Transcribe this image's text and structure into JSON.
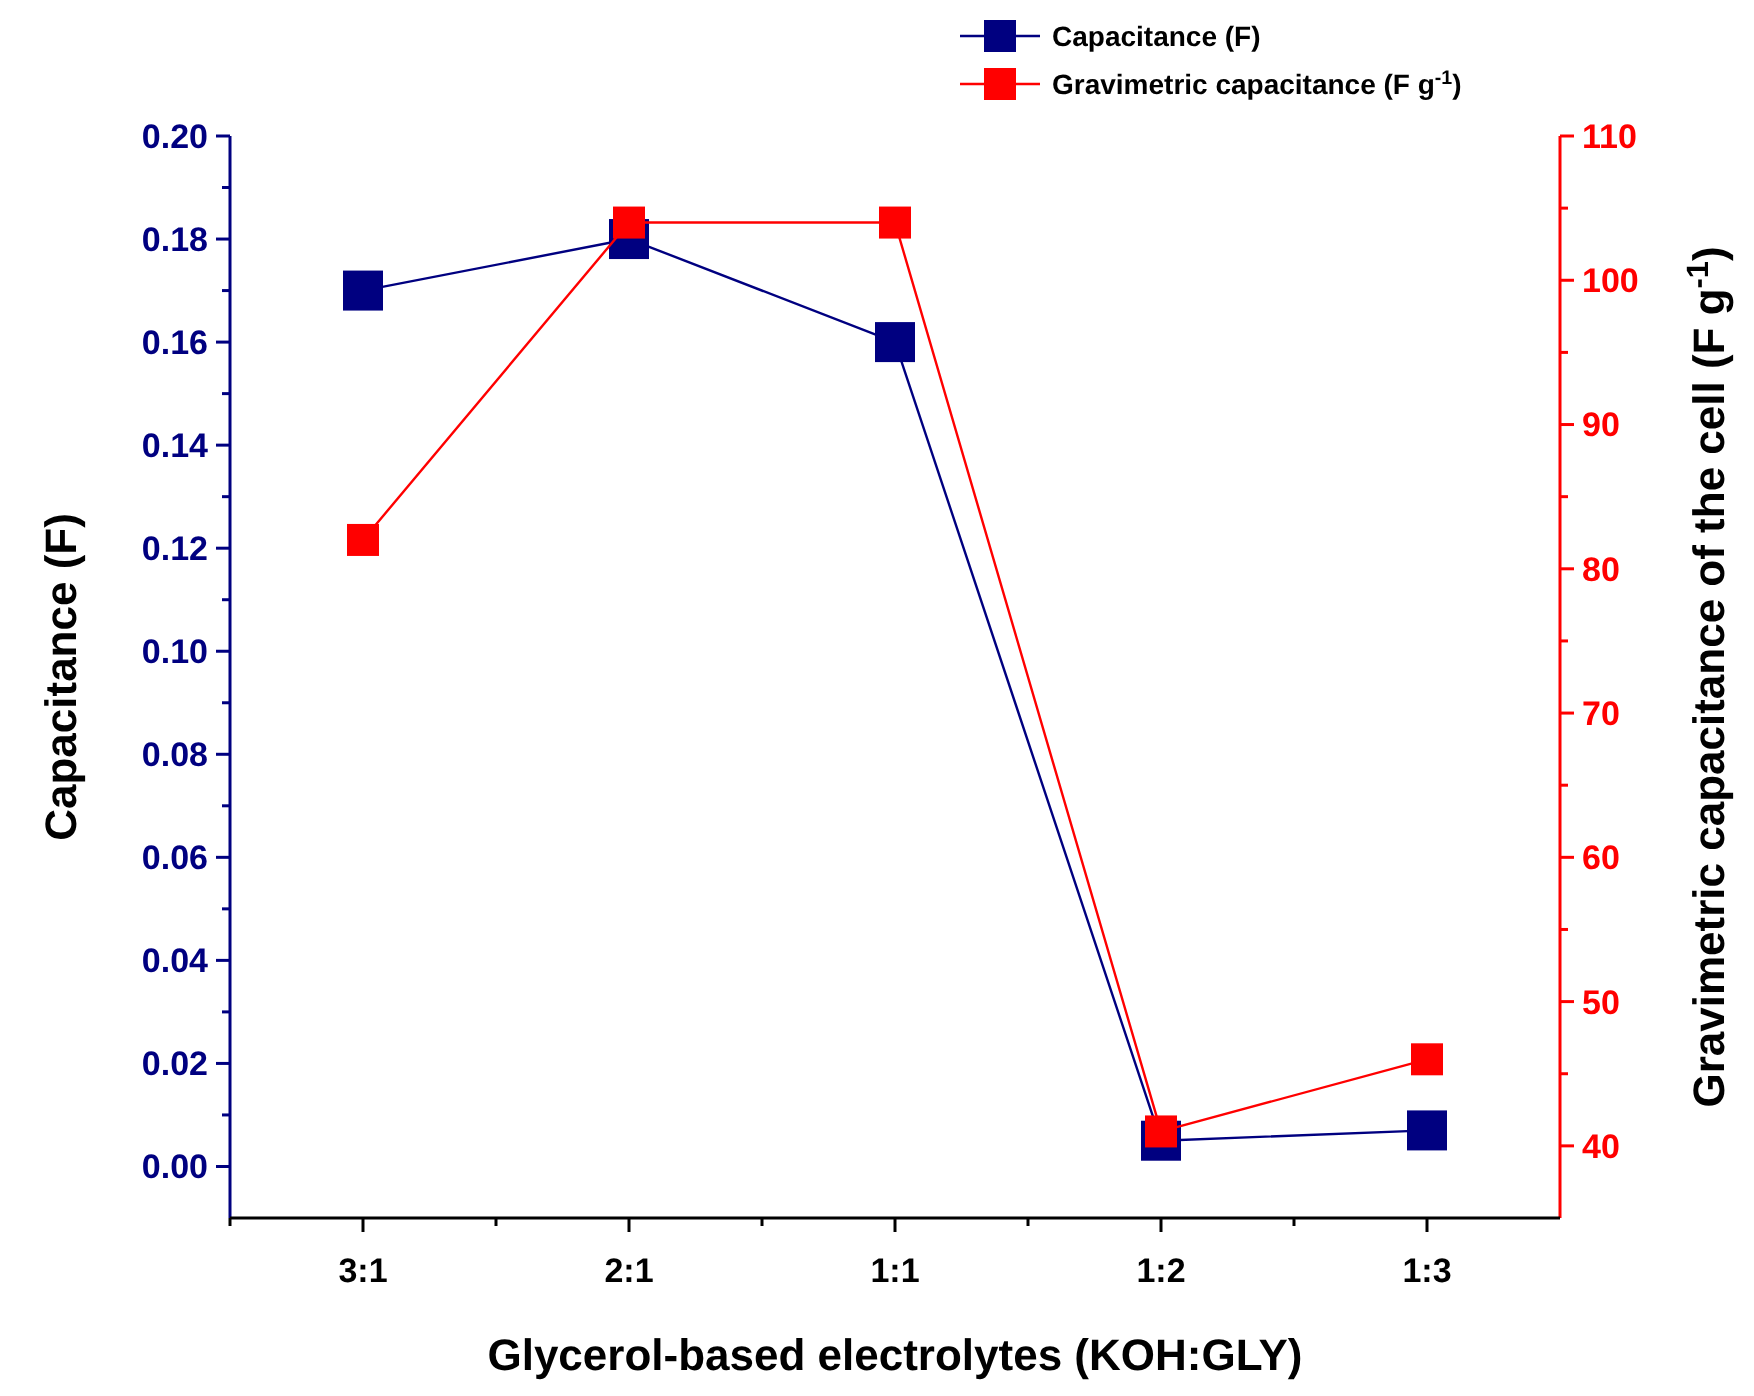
{
  "chart_data": {
    "type": "line",
    "xlabel": "Glycerol-based electrolytes (KOH:GLY)",
    "ylabel": "Capacitance (F)",
    "y2label": "Gravimetric capacitance of the cell (F g$^{-1}$)",
    "categories": [
      "3:1",
      "2:1",
      "1:1",
      "1:2",
      "1:3"
    ],
    "series": [
      {
        "name": "Capacitance (F)",
        "color": "#000080",
        "values": [
          0.17,
          0.18,
          0.16,
          0.005,
          0.007
        ]
      },
      {
        "name": "Gravimetric capacitance (F g$^{-1}$)",
        "color": "#ff0000",
        "axis": "y2",
        "values": [
          82,
          104,
          104,
          41,
          46
        ]
      }
    ],
    "ylim": [
      -0.01,
      0.2
    ],
    "yticks": [
      {
        "value": 0,
        "label": "0.00"
      },
      {
        "value": 0.02,
        "label": "0.02"
      },
      {
        "value": 0.04,
        "label": "0.04"
      },
      {
        "value": 0.06,
        "label": "0.06"
      },
      {
        "value": 0.08,
        "label": "0.08"
      },
      {
        "value": 0.1,
        "label": "0.10"
      },
      {
        "value": 0.12,
        "label": "0.12"
      },
      {
        "value": 0.14,
        "label": "0.14"
      },
      {
        "value": 0.16,
        "label": "0.16"
      },
      {
        "value": 0.18,
        "label": "0.18"
      },
      {
        "value": 0.2,
        "label": "0.20"
      }
    ],
    "y2lim": [
      35,
      110
    ],
    "y2ticks": [
      40,
      50,
      60,
      70,
      80,
      90,
      100,
      110
    ],
    "marker": "square",
    "line_style": "solid",
    "legend": "top",
    "grid": false
  }
}
